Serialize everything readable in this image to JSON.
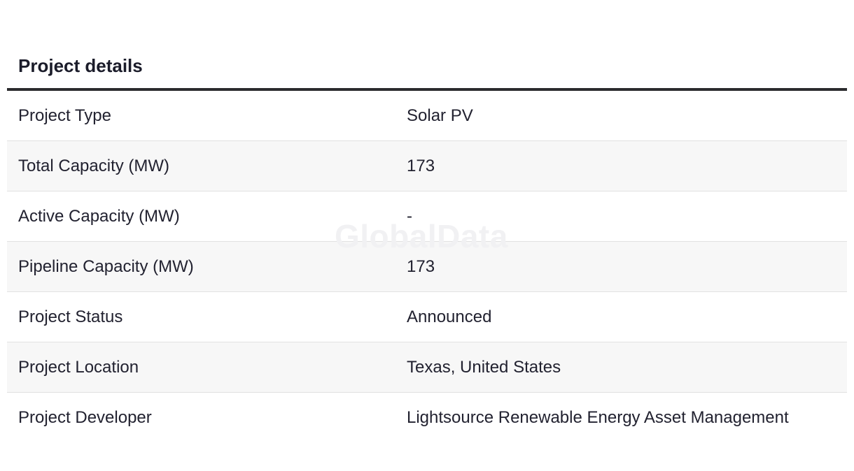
{
  "section": {
    "title": "Project details"
  },
  "watermark": "GlobalData",
  "rows": [
    {
      "label": "Project Type",
      "value": "Solar PV"
    },
    {
      "label": "Total Capacity (MW)",
      "value": "173"
    },
    {
      "label": "Active Capacity (MW)",
      "value": "-"
    },
    {
      "label": "Pipeline Capacity (MW)",
      "value": "173"
    },
    {
      "label": "Project Status",
      "value": "Announced"
    },
    {
      "label": "Project Location",
      "value": "Texas, United States"
    },
    {
      "label": "Project Developer",
      "value": "Lightsource Renewable Energy Asset Management"
    }
  ]
}
